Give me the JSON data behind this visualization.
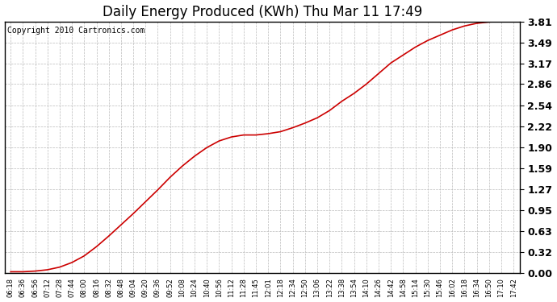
{
  "title": "Daily Energy Produced (KWh) Thu Mar 11 17:49",
  "copyright_text": "Copyright 2010 Cartronics.com",
  "line_color": "#cc0000",
  "background_color": "#ffffff",
  "plot_bg_color": "#ffffff",
  "grid_color": "#bbbbbb",
  "ylim": [
    0.0,
    3.81
  ],
  "yticks": [
    0.0,
    0.32,
    0.63,
    0.95,
    1.27,
    1.59,
    1.9,
    2.22,
    2.54,
    2.86,
    3.17,
    3.49,
    3.81
  ],
  "x_labels": [
    "06:18",
    "06:36",
    "06:56",
    "07:12",
    "07:28",
    "07:44",
    "08:00",
    "08:16",
    "08:32",
    "08:48",
    "09:04",
    "09:20",
    "09:36",
    "09:52",
    "10:08",
    "10:24",
    "10:40",
    "10:56",
    "11:12",
    "11:28",
    "11:45",
    "12:01",
    "12:18",
    "12:34",
    "12:50",
    "13:06",
    "13:22",
    "13:38",
    "13:54",
    "14:10",
    "14:26",
    "14:42",
    "14:58",
    "15:14",
    "15:30",
    "15:46",
    "16:02",
    "16:18",
    "16:34",
    "16:50",
    "17:10",
    "17:42"
  ],
  "y_data": [
    0.02,
    0.02,
    0.03,
    0.05,
    0.09,
    0.16,
    0.26,
    0.4,
    0.56,
    0.73,
    0.9,
    1.08,
    1.26,
    1.45,
    1.62,
    1.77,
    1.9,
    2.0,
    2.06,
    2.09,
    2.09,
    2.11,
    2.14,
    2.2,
    2.27,
    2.35,
    2.46,
    2.6,
    2.72,
    2.86,
    3.02,
    3.18,
    3.3,
    3.42,
    3.52,
    3.6,
    3.68,
    3.74,
    3.78,
    3.8,
    3.81,
    3.81
  ],
  "title_fontsize": 12,
  "ytick_fontsize": 9,
  "xtick_fontsize": 6,
  "copyright_fontsize": 7,
  "linewidth": 1.2
}
